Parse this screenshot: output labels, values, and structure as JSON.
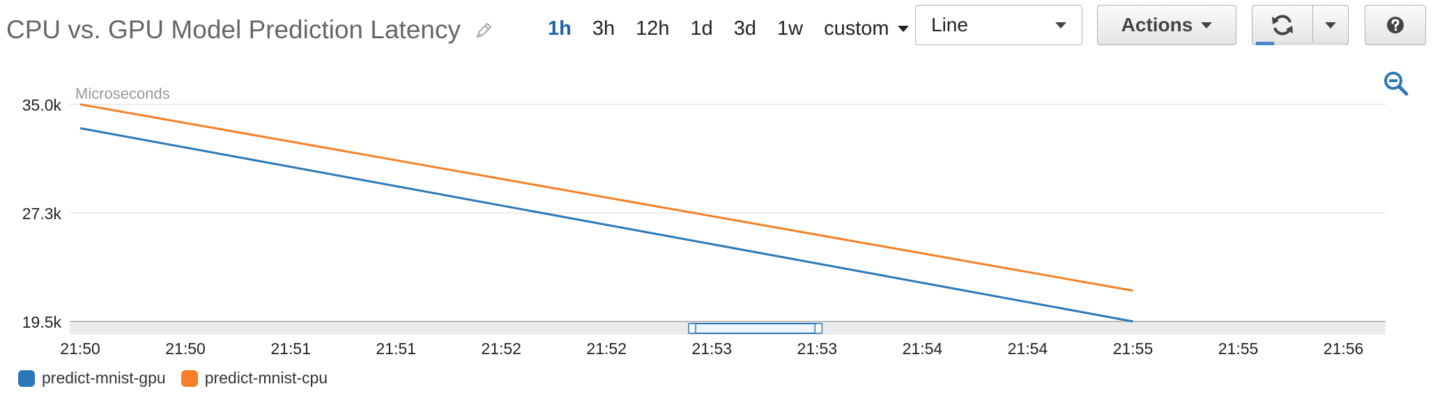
{
  "header": {
    "title": "CPU vs. GPU Model Prediction Latency",
    "time_ranges": [
      "1h",
      "3h",
      "12h",
      "1d",
      "3d",
      "1w"
    ],
    "active_range": "1h",
    "custom_label": "custom",
    "view_select": "Line",
    "actions_label": "Actions",
    "refresh_progress": 0.2
  },
  "colors": {
    "gpu": "#2a78b8",
    "cpu": "#f58025",
    "grid": "#e6e6e6",
    "active_range": "#1f5fa8"
  },
  "chart_data": {
    "type": "line",
    "ylabel": "Microseconds",
    "ylim": [
      19500,
      35000
    ],
    "y_ticks": [
      {
        "value": 35000,
        "label": "35.0k"
      },
      {
        "value": 27250,
        "label": "27.3k"
      },
      {
        "value": 19500,
        "label": "19.5k"
      }
    ],
    "x_range_minutes": [
      0,
      6.2
    ],
    "x_ticks": [
      {
        "t": 0.0,
        "label": "21:50"
      },
      {
        "t": 0.5,
        "label": "21:50"
      },
      {
        "t": 1.0,
        "label": "21:51"
      },
      {
        "t": 1.5,
        "label": "21:51"
      },
      {
        "t": 2.0,
        "label": "21:52"
      },
      {
        "t": 2.5,
        "label": "21:52"
      },
      {
        "t": 3.0,
        "label": "21:53"
      },
      {
        "t": 3.5,
        "label": "21:53"
      },
      {
        "t": 4.0,
        "label": "21:54"
      },
      {
        "t": 4.5,
        "label": "21:54"
      },
      {
        "t": 5.0,
        "label": "21:55"
      },
      {
        "t": 5.5,
        "label": "21:55"
      },
      {
        "t": 6.0,
        "label": "21:56"
      }
    ],
    "series": [
      {
        "name": "predict-mnist-gpu",
        "color": "#2a78b8",
        "points": [
          {
            "t": 0.0,
            "y": 33300
          },
          {
            "t": 5.0,
            "y": 19500
          }
        ]
      },
      {
        "name": "predict-mnist-cpu",
        "color": "#f58025",
        "points": [
          {
            "t": 0.0,
            "y": 35000
          },
          {
            "t": 5.0,
            "y": 21700
          }
        ]
      }
    ],
    "navigator": {
      "window_start": 2.9,
      "window_end": 3.5
    },
    "legend_position": "bottom-left"
  }
}
